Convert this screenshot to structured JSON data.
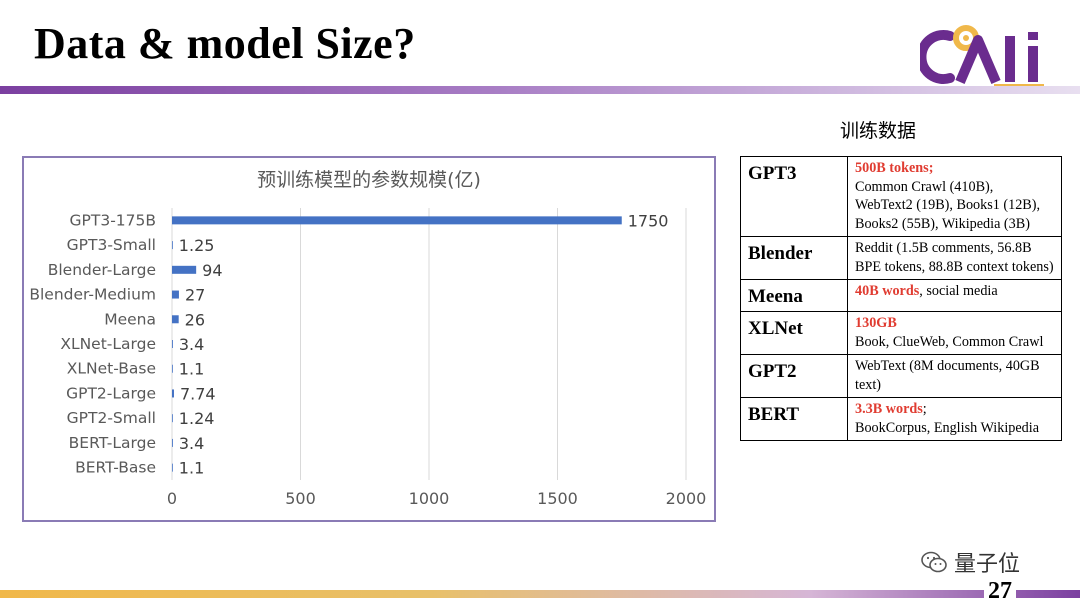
{
  "slide": {
    "title": "Data & model Size?",
    "page_number": "27",
    "watermark": "量子位"
  },
  "colors": {
    "accent_purple": "#7b3fa0",
    "bar_blue": "#4472c4",
    "highlight_red": "#e03c31",
    "bottom_gold": "#f0b84a"
  },
  "chart_data": {
    "type": "bar",
    "orientation": "horizontal",
    "title": "预训练模型的参数规模(亿)",
    "categories": [
      "GPT3-175B",
      "GPT3-Small",
      "Blender-Large",
      "Blender-Medium",
      "Meena",
      "XLNet-Large",
      "XLNet-Base",
      "GPT2-Large",
      "GPT2-Small",
      "BERT-Large",
      "BERT-Base"
    ],
    "values": [
      1750,
      1.25,
      94,
      27,
      26,
      3.4,
      1.1,
      7.74,
      1.24,
      3.4,
      1.1
    ],
    "value_labels": [
      "1750",
      "1.25",
      "94",
      "27",
      "26",
      "3.4",
      "1.1",
      "7.74",
      "1.24",
      "3.4",
      "1.1"
    ],
    "xlim": [
      0,
      2000
    ],
    "xticks": [
      "0",
      "500",
      "1000",
      "1500",
      "2000"
    ],
    "grid": true,
    "legend": "none"
  },
  "table": {
    "caption": "训练数据",
    "rows": [
      {
        "model": "GPT3",
        "highlight": "500B tokens;",
        "text": "Common Crawl (410B), WebText2 (19B), Books1 (12B), Books2 (55B), Wikipedia (3B)",
        "break": true
      },
      {
        "model": "Blender",
        "highlight": "",
        "text": "Reddit (1.5B comments, 56.8B BPE tokens, 88.8B context tokens)",
        "break": false
      },
      {
        "model": "Meena",
        "highlight": "40B words",
        "text": ", social media",
        "break": false
      },
      {
        "model": "XLNet",
        "highlight": "130GB",
        "text": "Book, ClueWeb, Common Crawl",
        "break": true
      },
      {
        "model": "GPT2",
        "highlight": "",
        "text": "WebText (8M documents, 40GB text)",
        "break": false
      },
      {
        "model": "BERT",
        "highlight": "3.3B words",
        "text": "; BookCorpus, English Wikipedia",
        "break": false,
        "break_after_punct": true
      }
    ]
  }
}
